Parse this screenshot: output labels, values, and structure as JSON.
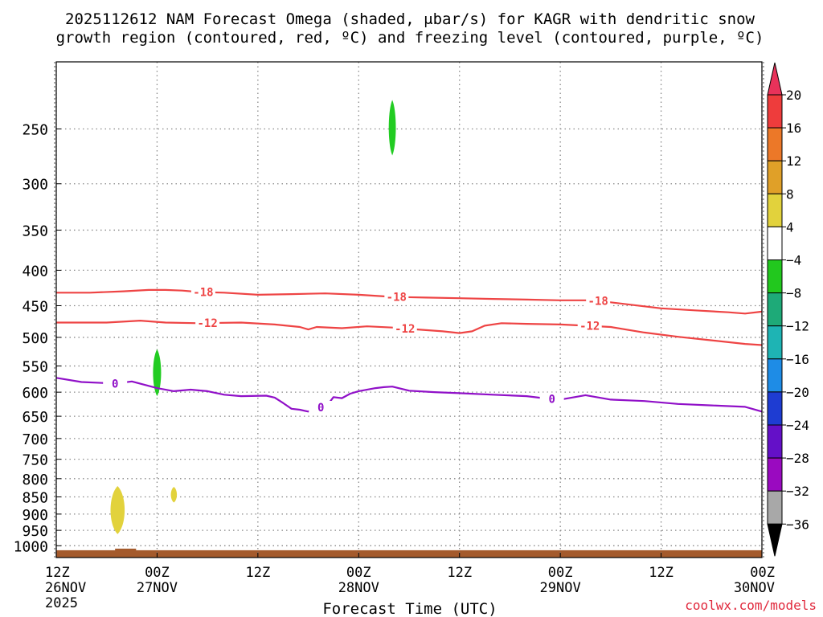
{
  "chart_data": {
    "type": "time-height",
    "title_line1": "2025112612 NAM Forecast Omega (shaded, μbar/s) for KAGR with dendritic snow",
    "title_line2": "growth region (contoured, red, ºC) and freezing level (contoured, purple, ºC)",
    "xlabel": "Forecast Time (UTC)",
    "credit": "coolwx.com/models",
    "xlim_hours": [
      0,
      84
    ],
    "x_ticks": [
      {
        "h": 0,
        "l1": "12Z",
        "l2": "26NOV",
        "l3": "2025"
      },
      {
        "h": 12,
        "l1": "00Z",
        "l2": "27NOV",
        "l3": ""
      },
      {
        "h": 24,
        "l1": "12Z",
        "l2": "",
        "l3": ""
      },
      {
        "h": 36,
        "l1": "00Z",
        "l2": "28NOV",
        "l3": ""
      },
      {
        "h": 48,
        "l1": "12Z",
        "l2": "",
        "l3": ""
      },
      {
        "h": 60,
        "l1": "00Z",
        "l2": "29NOV",
        "l3": ""
      },
      {
        "h": 72,
        "l1": "12Z",
        "l2": "",
        "l3": ""
      },
      {
        "h": 84,
        "l1": "00Z",
        "l2": "30NOV",
        "l3": ""
      }
    ],
    "y_levels_hPa": [
      250,
      300,
      350,
      400,
      450,
      500,
      550,
      600,
      650,
      700,
      750,
      800,
      850,
      900,
      950,
      1000
    ],
    "ylim_hPa": [
      200,
      1040
    ],
    "ground_hPa": 1015,
    "colorbar": {
      "labels": [
        "20",
        "16",
        "12",
        "8",
        "4",
        "−4",
        "−8",
        "−12",
        "−16",
        "−20",
        "−24",
        "−28",
        "−32",
        "−36"
      ],
      "colors": [
        "#e8325a",
        "#ee3c3c",
        "#ec7828",
        "#e0a028",
        "#e2d23c",
        "#ffffff",
        "#22c81e",
        "#1eaa78",
        "#1eb4b4",
        "#1e8ce6",
        "#1e3cd2",
        "#6410c8",
        "#9a0ac0",
        "#a8a8a8",
        "#000000"
      ]
    },
    "colors": {
      "dgz": "#ee4444",
      "freezing": "#9010c8",
      "ground": "#a45a2c",
      "up_weak": "#22cc22",
      "down_weak": "#e2d23c"
    },
    "dgz_minus18": {
      "label": "-18",
      "x": [
        0,
        4,
        8,
        11,
        13,
        15,
        17,
        20,
        24,
        28,
        32,
        36,
        40,
        44,
        48,
        52,
        56,
        60,
        64,
        66,
        68,
        70,
        72,
        76,
        80,
        82,
        84
      ],
      "y": [
        431,
        431,
        429,
        427,
        427,
        428,
        430,
        431,
        434,
        433,
        432,
        434,
        437,
        438,
        439,
        440,
        441,
        442,
        442,
        445,
        448,
        451,
        454,
        457,
        460,
        462,
        459
      ],
      "label_hours": [
        17.5,
        40.5,
        64.5
      ]
    },
    "dgz_minus12": {
      "label": "-12",
      "x": [
        0,
        6,
        10,
        13,
        17,
        22,
        26,
        29,
        30,
        31,
        34,
        37,
        40,
        43,
        46,
        48,
        49.5,
        51,
        53,
        56,
        60,
        63,
        66,
        70,
        74,
        78,
        82,
        84
      ],
      "y": [
        476,
        476,
        473,
        476,
        477,
        476,
        479,
        483,
        487,
        483,
        485,
        482,
        484,
        487,
        490,
        493,
        490,
        481,
        477,
        478,
        479,
        481,
        483,
        492,
        499,
        505,
        511,
        513
      ],
      "label_hours": [
        18,
        41.5,
        63.5
      ]
    },
    "freezing_level": {
      "label": "0",
      "x": [
        0,
        3,
        7,
        9,
        12,
        14,
        16,
        18,
        20,
        22,
        25,
        26,
        27,
        28,
        29,
        30,
        31,
        32,
        33,
        34,
        35,
        36,
        38,
        39,
        40,
        42,
        45,
        48,
        52,
        56,
        58,
        60,
        63,
        66,
        70,
        74,
        78,
        82,
        84
      ],
      "y": [
        572,
        580,
        583,
        579,
        592,
        598,
        595,
        598,
        605,
        608,
        607,
        611,
        622,
        634,
        636,
        640,
        629,
        633,
        610,
        612,
        603,
        598,
        592,
        590,
        589,
        597,
        600,
        602,
        605,
        608,
        612,
        615,
        606,
        615,
        618,
        624,
        627,
        630,
        640
      ],
      "label_hours": [
        7,
        31.5,
        59
      ]
    },
    "omega_patches": [
      {
        "hour": 40.0,
        "hw": 0.35,
        "p_top": 227,
        "p_bot": 273,
        "color_key": "up_weak"
      },
      {
        "hour": 12.0,
        "hw": 0.4,
        "p_top": 520,
        "p_bot": 608,
        "color_key": "up_weak"
      },
      {
        "hour": 7.3,
        "hw": 0.7,
        "p_top": 820,
        "p_bot": 962,
        "color_key": "down_weak"
      },
      {
        "hour": 14.0,
        "hw": 0.3,
        "p_top": 822,
        "p_bot": 866,
        "color_key": "down_weak"
      }
    ]
  }
}
